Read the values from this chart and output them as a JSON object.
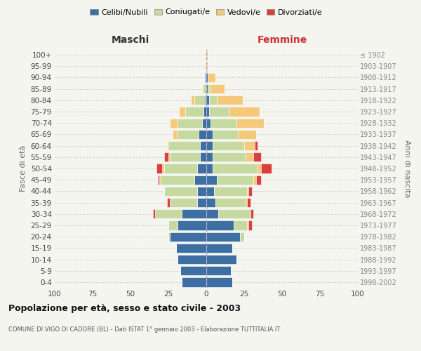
{
  "age_groups": [
    "0-4",
    "5-9",
    "10-14",
    "15-19",
    "20-24",
    "25-29",
    "30-34",
    "35-39",
    "40-44",
    "45-49",
    "50-54",
    "55-59",
    "60-64",
    "65-69",
    "70-74",
    "75-79",
    "80-84",
    "85-89",
    "90-94",
    "95-99",
    "100+"
  ],
  "birth_years": [
    "1998-2002",
    "1993-1997",
    "1988-1992",
    "1983-1987",
    "1978-1982",
    "1973-1977",
    "1968-1972",
    "1963-1967",
    "1958-1962",
    "1953-1957",
    "1948-1952",
    "1943-1947",
    "1938-1942",
    "1933-1937",
    "1928-1932",
    "1923-1927",
    "1918-1922",
    "1913-1917",
    "1908-1912",
    "1903-1907",
    "≤ 1902"
  ],
  "colors": {
    "celibe": "#3e6fa3",
    "coniugato": "#c5d9a0",
    "vedovo": "#f5c97a",
    "divorziato": "#d93f3c"
  },
  "maschi": {
    "celibe": [
      16,
      17,
      19,
      20,
      24,
      19,
      16,
      6,
      6,
      8,
      6,
      4,
      4,
      5,
      3,
      2,
      1,
      0,
      1,
      0,
      0
    ],
    "coniugato": [
      0,
      0,
      0,
      0,
      1,
      6,
      18,
      18,
      22,
      22,
      22,
      20,
      21,
      14,
      16,
      12,
      7,
      2,
      0,
      0,
      0
    ],
    "vedovo": [
      0,
      0,
      0,
      0,
      0,
      0,
      0,
      0,
      0,
      1,
      1,
      1,
      1,
      3,
      5,
      4,
      2,
      1,
      0,
      0,
      0
    ],
    "divorziato": [
      0,
      0,
      0,
      0,
      0,
      0,
      1,
      2,
      0,
      1,
      4,
      3,
      0,
      0,
      0,
      0,
      0,
      0,
      0,
      0,
      0
    ]
  },
  "femmine": {
    "nubile": [
      17,
      16,
      20,
      17,
      22,
      18,
      8,
      6,
      5,
      7,
      4,
      4,
      4,
      4,
      3,
      2,
      2,
      1,
      1,
      0,
      0
    ],
    "coniugata": [
      0,
      0,
      0,
      0,
      3,
      9,
      21,
      20,
      22,
      24,
      30,
      22,
      21,
      17,
      17,
      13,
      5,
      2,
      0,
      0,
      0
    ],
    "vedova": [
      0,
      0,
      0,
      0,
      0,
      1,
      0,
      1,
      1,
      2,
      2,
      5,
      7,
      12,
      18,
      20,
      17,
      9,
      5,
      1,
      1
    ],
    "divorziata": [
      0,
      0,
      0,
      0,
      0,
      2,
      2,
      2,
      2,
      3,
      7,
      5,
      2,
      0,
      0,
      0,
      0,
      0,
      0,
      0,
      0
    ]
  },
  "xlim": 100,
  "title": "Popolazione per età, sesso e stato civile - 2003",
  "subtitle": "COMUNE DI VIGO DI CADORE (BL) - Dati ISTAT 1° gennaio 2003 - Elaborazione TUTTITALIA.IT",
  "xlabel_left": "Maschi",
  "xlabel_right": "Femmine",
  "ylabel_left": "Fasce di età",
  "ylabel_right": "Anni di nascita",
  "legend_labels": [
    "Celibi/Nubili",
    "Coniugati/e",
    "Vedovi/e",
    "Divorziati/e"
  ],
  "bg_color": "#f5f5f0"
}
